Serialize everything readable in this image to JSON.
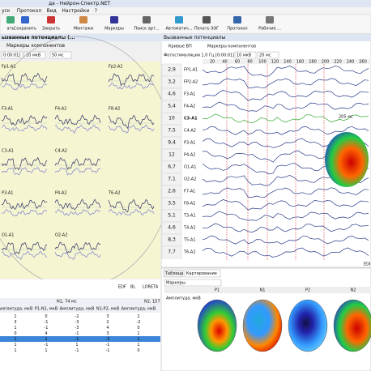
{
  "title": "да - Нейрон-Спектр.NET",
  "menu": [
    "уск",
    "Протокол",
    "Вид",
    "Настройки",
    "?"
  ],
  "toolbar": [
    "ать",
    "Сохранить",
    "Закрыть",
    "Монтажи",
    "Маркеры",
    "Поиск арт...",
    "Автоматич...",
    "Печать ЭЭГ",
    "Протокол",
    "Рабочие ..."
  ],
  "left_panel": {
    "title": "ызванные потенциалы (...",
    "markers": "Маркеры компонентов",
    "controls": [
      "0:00:01]",
      "10 мкВ",
      "50 мс"
    ],
    "channels": [
      "Fp1-A1",
      "Fp2-A2",
      "F3-A1",
      "F4-A2",
      "F8-A2",
      "C3-A1",
      "C4-A2",
      "P3-A1",
      "P4-A2",
      "T6-A2",
      "O1-A1",
      "O2-A2"
    ],
    "footer": [
      "EDF",
      "BL",
      "LORETA"
    ]
  },
  "right_panel": {
    "title": "Вызванные потенциалы",
    "tabs": [
      "Кривые ВП",
      "Маркеры компонентов"
    ],
    "stimulus": "Фотостимуляция 1,0 Гц [0:00:01]",
    "controls": [
      "10 мкВ",
      "20 мс"
    ],
    "time_ticks": [
      "20",
      "40",
      "60",
      "80",
      "100",
      "120",
      "140",
      "160",
      "180",
      "200",
      "220",
      "240",
      "260"
    ],
    "channels": [
      {
        "value": "2,9",
        "label": "FP1-A1"
      },
      {
        "value": "3,2",
        "label": "FP2-A2"
      },
      {
        "value": "4,6",
        "label": "F3-A1"
      },
      {
        "value": "5,4",
        "label": "F4-A2"
      },
      {
        "value": "10",
        "label": "C3-A1"
      },
      {
        "value": "7,5",
        "label": "C4-A2"
      },
      {
        "value": "9,4",
        "label": "P3-A1"
      },
      {
        "value": "12",
        "label": "P4-A2"
      },
      {
        "value": "6,7",
        "label": "O1-A1"
      },
      {
        "value": "7,1",
        "label": "O2-A2"
      },
      {
        "value": "2,6",
        "label": "F7-A1"
      },
      {
        "value": "3,5",
        "label": "F8-A2"
      },
      {
        "value": "5,1",
        "label": "T3-A1"
      },
      {
        "value": "4,6",
        "label": "T4-A2"
      },
      {
        "value": "8,3",
        "label": "T5-A1"
      },
      {
        "value": "7,7",
        "label": "T6-A2"
      }
    ],
    "annotation": "205 мс",
    "corner": "EDI"
  },
  "mapping": {
    "tabs": [
      "Таблица",
      "Картирование"
    ],
    "markers": "Маркеры",
    "row_label": "Амплитуда, мкВ",
    "columns": [
      "P1",
      "N1",
      "P2",
      "N2"
    ]
  },
  "table": {
    "group_headers": [
      "N1, 74 мс",
      "N2, 157"
    ],
    "headers": [
      "Амплитуда, мкВ",
      "P1-N1, мкВ",
      "Амплитуда, мкВ",
      "N1-P2, мкВ",
      "Амплитуда, мкВ"
    ],
    "rows": [
      [
        "1",
        "0",
        "-2",
        "3",
        "2"
      ],
      [
        "3",
        "-1",
        "-3",
        "2",
        "-2"
      ],
      [
        "1",
        "-1",
        "-3",
        "4",
        "0"
      ],
      [
        "0",
        "4",
        "-1",
        "3",
        "1"
      ],
      [
        "1",
        "1",
        "-1",
        "-3",
        "1"
      ],
      [
        "1",
        "-1",
        "1",
        "-1",
        "1"
      ],
      [
        "1",
        "1",
        "-1",
        "-1",
        "0"
      ]
    ]
  }
}
